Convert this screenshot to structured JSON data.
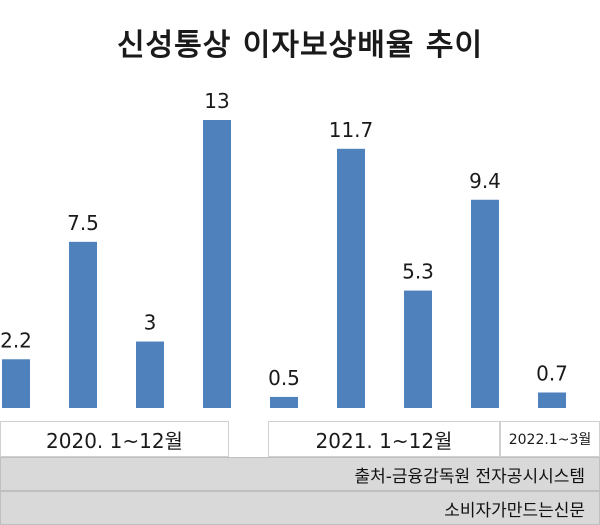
{
  "chart_data": {
    "type": "bar",
    "title": "신성통상 이자보상배율 추이",
    "values": [
      2.2,
      7.5,
      3,
      13,
      0.5,
      11.7,
      5.3,
      9.4,
      0.7
    ],
    "value_labels": [
      "2.2",
      "7.5",
      "3",
      "13",
      "0.5",
      "11.7",
      "5.3",
      "9.4",
      "0.7"
    ],
    "groups": [
      {
        "label": "2020. 1~12월",
        "bar_count": 4
      },
      {
        "label": "2021. 1~12월",
        "bar_count": 4
      },
      {
        "label": "2022.1~3월",
        "bar_count": 1
      }
    ],
    "ylim": [
      0,
      13
    ],
    "grid": false,
    "bar_color": "#4f81bd"
  },
  "footer": {
    "source": "출처-금융감독원 전자공시시스템",
    "brand": "소비자가만드는신문"
  }
}
